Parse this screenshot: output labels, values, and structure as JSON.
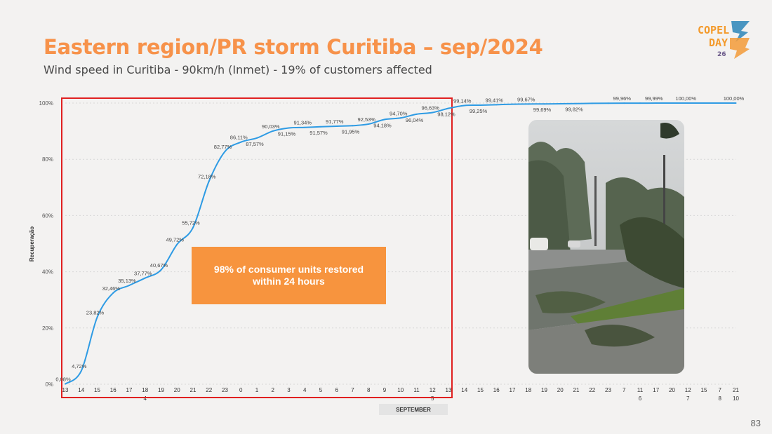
{
  "slide": {
    "title": "Eastern region/PR storm Curitiba – sep/2024",
    "subtitle": "Wind speed in Curitiba - 90km/h (Inmet) - 19% of customers affected",
    "page_number": "83"
  },
  "logo": {
    "line1": "COPEL",
    "line2": "DAY",
    "number": "26"
  },
  "callout": {
    "text": "98% of consumer units restored within 24 hours",
    "color": "#f7943e"
  },
  "photo": {
    "alt": "storm damage photo",
    "subject": "fallen trees on a flooded avenue"
  },
  "colors": {
    "accent": "#f7924a",
    "line": "#2e9be4",
    "highlight_box": "#e02020"
  },
  "chart_data": {
    "type": "line",
    "xlabel": "SEPTEMBER",
    "ylabel": "Recuperação",
    "ylim": [
      0,
      100
    ],
    "yticks": [
      "0%",
      "20%",
      "40%",
      "60%",
      "80%",
      "100%"
    ],
    "grid": true,
    "x_hours": [
      "13",
      "14",
      "15",
      "16",
      "17",
      "18",
      "19",
      "20",
      "21",
      "22",
      "23",
      "0",
      "1",
      "2",
      "3",
      "4",
      "5",
      "6",
      "7",
      "8",
      "9",
      "10",
      "11",
      "12",
      "13",
      "14",
      "15",
      "16",
      "17",
      "18",
      "19",
      "20",
      "21",
      "22",
      "23",
      "7",
      "11",
      "17",
      "20",
      "12",
      "15",
      "7",
      "21"
    ],
    "x_days": [
      {
        "label": "4",
        "at_index": 5
      },
      {
        "label": "5",
        "at_index": 23
      },
      {
        "label": "6",
        "at_index": 36
      },
      {
        "label": "7",
        "at_index": 39
      },
      {
        "label": "8",
        "at_index": 41
      },
      {
        "label": "10",
        "at_index": 42
      }
    ],
    "series": [
      {
        "values": [
          0.08,
          4.72,
          23.82,
          32.46,
          35.13,
          37.77,
          40.67,
          49.72,
          55.72,
          72.18,
          82.77,
          86.11,
          87.57,
          90.03,
          91.15,
          91.34,
          91.57,
          91.77,
          91.95,
          92.53,
          94.18,
          94.7,
          96.04,
          96.63,
          98.12,
          99.14,
          99.25,
          99.41,
          99.6,
          99.67,
          99.69,
          99.76,
          99.82,
          99.9,
          99.94,
          99.96,
          99.97,
          99.99,
          99.99,
          100.0,
          100.0,
          100.0,
          100.0
        ],
        "labels": [
          "0,08%",
          "4,72%",
          "23,82%",
          "32,46%",
          "35,13%",
          "37,77%",
          "40,67%",
          "49,72%",
          "55,72%",
          "72,18%",
          "82,77%",
          "86,11%",
          "87,57%",
          "90,03%",
          "91,15%",
          "91,34%",
          "91,57%",
          "91,77%",
          "91,95%",
          "92,53%",
          "94,18%",
          "94,70%",
          "96,04%",
          "96,63%",
          "98,12%",
          "99,14%",
          "99,25%",
          "99,41%",
          "",
          "99,67%",
          "99,69%",
          "",
          "99,82%",
          "",
          "",
          "99,96%",
          "",
          "99,99%",
          "",
          "100,00%",
          "",
          "",
          "100,00%"
        ]
      }
    ],
    "highlight": {
      "from_index": 0,
      "to_index": 24
    }
  }
}
